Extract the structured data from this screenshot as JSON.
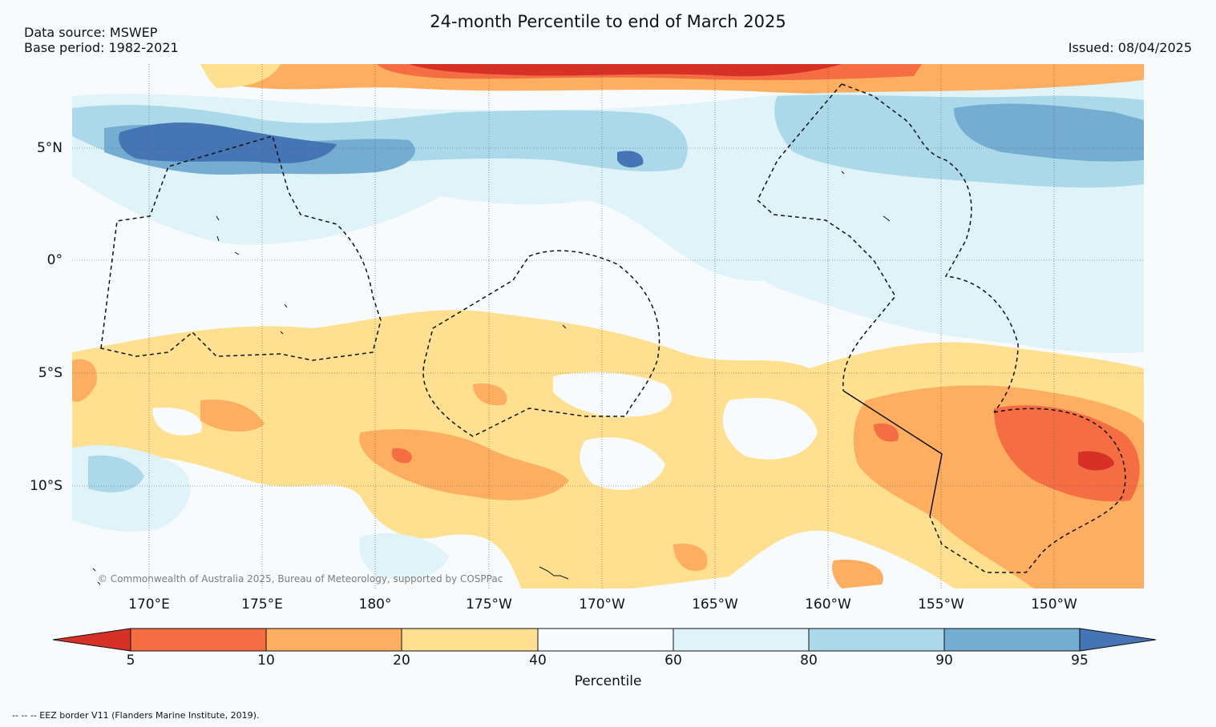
{
  "header": {
    "title": "24-month Percentile to end of March 2025",
    "data_source": "Data source: MSWEP",
    "base_period": "Base period: 1982-2021",
    "issued": "Issued: 08/04/2025"
  },
  "map": {
    "region": "Central Pacific",
    "lon_range": [
      166.67,
      -146.67
    ],
    "lat_range": [
      -14.5,
      8.7
    ],
    "lat_labels": [
      "5°N",
      "0°",
      "5°S",
      "10°S"
    ],
    "lon_labels": [
      "170°E",
      "175°E",
      "180°",
      "175°W",
      "170°W",
      "165°W",
      "160°W",
      "155°W",
      "150°W"
    ],
    "copyright": "© Commonwealth of Australia 2025, Bureau of Meteorology, supported by COSPPac",
    "eez_line_style": "dashed"
  },
  "colorbar": {
    "label": "Percentile",
    "ticks": [
      "5",
      "10",
      "20",
      "40",
      "60",
      "80",
      "90",
      "95"
    ],
    "colors": [
      "#d73027",
      "#f46d43",
      "#fdae61",
      "#fee090",
      "#f7fbfd",
      "#e0f3f8",
      "#abd9e9",
      "#74add1",
      "#4575b4"
    ]
  },
  "legend_note": "--  --  -- EEZ border V11 (Flanders Marine Institute, 2019)."
}
